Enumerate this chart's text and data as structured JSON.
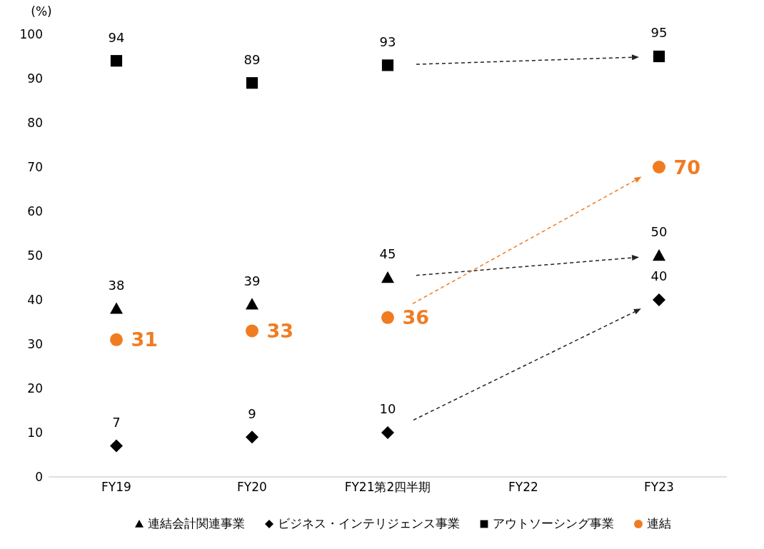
{
  "chart_data": {
    "type": "scatter",
    "ylabel": "(%)",
    "categories": [
      "FY19",
      "FY20",
      "FY21第2四半期",
      "FY22",
      "FY23"
    ],
    "series": [
      {
        "name": "連結会計関連事業",
        "color": "#000000",
        "marker": "triangle",
        "values": [
          38,
          39,
          45,
          null,
          50
        ]
      },
      {
        "name": "ビジネス・インテリジェンス事業",
        "color": "#000000",
        "marker": "diamond",
        "values": [
          7,
          9,
          10,
          null,
          40
        ]
      },
      {
        "name": "アウトソーシング事業",
        "color": "#000000",
        "marker": "square",
        "values": [
          94,
          89,
          93,
          null,
          95
        ]
      },
      {
        "name": "連結",
        "color": "#f07c22",
        "marker": "circle",
        "values": [
          31,
          33,
          36,
          null,
          70
        ]
      }
    ],
    "ylim": [
      0,
      100
    ],
    "yticks": [
      0,
      10,
      20,
      30,
      40,
      50,
      60,
      70,
      80,
      90,
      100
    ],
    "grid": false,
    "legend": "bottom",
    "data_labels": true
  }
}
